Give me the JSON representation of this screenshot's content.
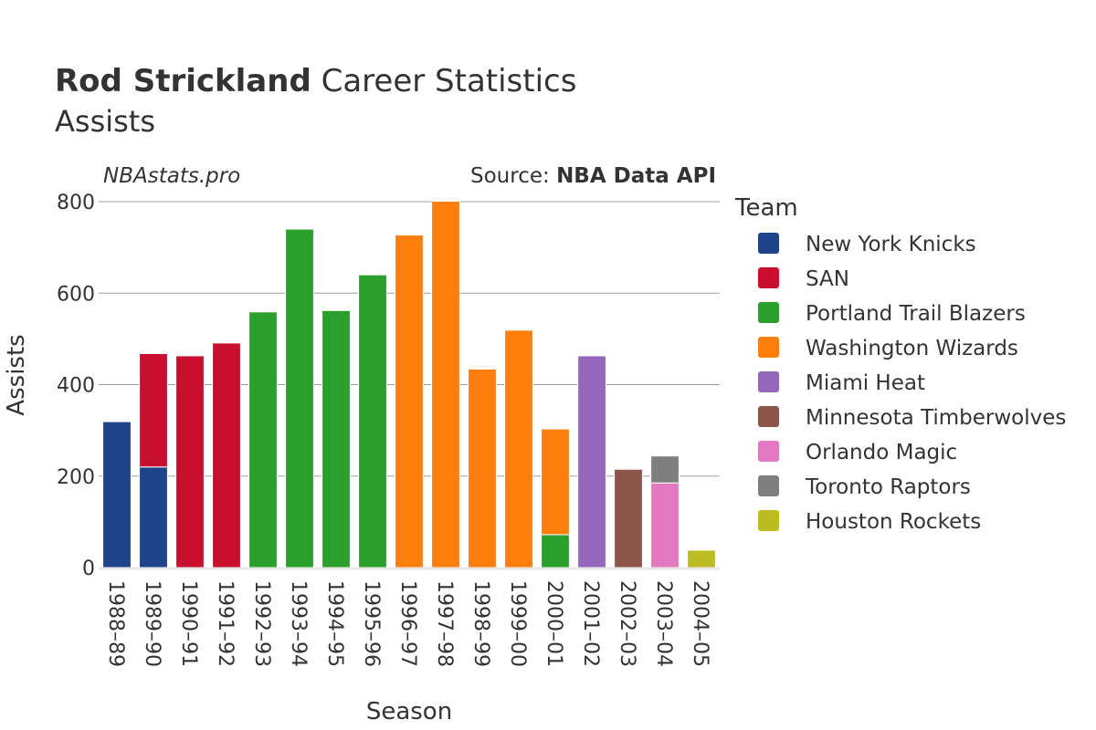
{
  "chart_data": {
    "type": "bar",
    "stacked": true,
    "title_bold": "Rod Strickland",
    "title_rest": " Career Statistics",
    "subtitle": "Assists",
    "watermark": "NBAstats.pro",
    "source_prefix": "Source: ",
    "source_name": "NBA Data API",
    "xlabel": "Season",
    "ylabel": "Assists",
    "ylim": [
      0,
      800
    ],
    "yticks": [
      0,
      200,
      400,
      600,
      800
    ],
    "legend_title": "Team",
    "legend_position": "right",
    "categories": [
      "1988–89",
      "1989–90",
      "1990–91",
      "1991–92",
      "1992–93",
      "1993–94",
      "1994–95",
      "1995–96",
      "1996–97",
      "1997–98",
      "1998–99",
      "1999–00",
      "2000–01",
      "2001–02",
      "2002–03",
      "2003–04",
      "2004–05"
    ],
    "series": [
      {
        "name": "New York Knicks",
        "color": "#1f438a",
        "values": [
          319,
          220,
          0,
          0,
          0,
          0,
          0,
          0,
          0,
          0,
          0,
          0,
          0,
          0,
          0,
          0,
          0
        ]
      },
      {
        "name": "SAN",
        "color": "#c8102e",
        "values": [
          0,
          248,
          463,
          491,
          0,
          0,
          0,
          0,
          0,
          0,
          0,
          0,
          0,
          0,
          0,
          0,
          0
        ]
      },
      {
        "name": "Portland Trail Blazers",
        "color": "#2ca02c",
        "values": [
          0,
          0,
          0,
          0,
          559,
          740,
          562,
          640,
          0,
          0,
          0,
          0,
          72,
          0,
          0,
          0,
          0
        ]
      },
      {
        "name": "Washington Wizards",
        "color": "#ff7f0e",
        "values": [
          0,
          0,
          0,
          0,
          0,
          0,
          0,
          0,
          727,
          801,
          434,
          519,
          231,
          0,
          0,
          0,
          0
        ]
      },
      {
        "name": "Miami Heat",
        "color": "#9467bd",
        "values": [
          0,
          0,
          0,
          0,
          0,
          0,
          0,
          0,
          0,
          0,
          0,
          0,
          0,
          463,
          0,
          0,
          0
        ]
      },
      {
        "name": "Minnesota Timberwolves",
        "color": "#8c564b",
        "values": [
          0,
          0,
          0,
          0,
          0,
          0,
          0,
          0,
          0,
          0,
          0,
          0,
          0,
          0,
          215,
          0,
          0
        ]
      },
      {
        "name": "Orlando Magic",
        "color": "#e377c2",
        "values": [
          0,
          0,
          0,
          0,
          0,
          0,
          0,
          0,
          0,
          0,
          0,
          0,
          0,
          0,
          0,
          185,
          0
        ]
      },
      {
        "name": "Toronto Raptors",
        "color": "#7f7f7f",
        "values": [
          0,
          0,
          0,
          0,
          0,
          0,
          0,
          0,
          0,
          0,
          0,
          0,
          0,
          0,
          0,
          59,
          0
        ]
      },
      {
        "name": "Houston Rockets",
        "color": "#bcbd22",
        "values": [
          0,
          0,
          0,
          0,
          0,
          0,
          0,
          0,
          0,
          0,
          0,
          0,
          0,
          0,
          0,
          0,
          38
        ]
      }
    ]
  }
}
